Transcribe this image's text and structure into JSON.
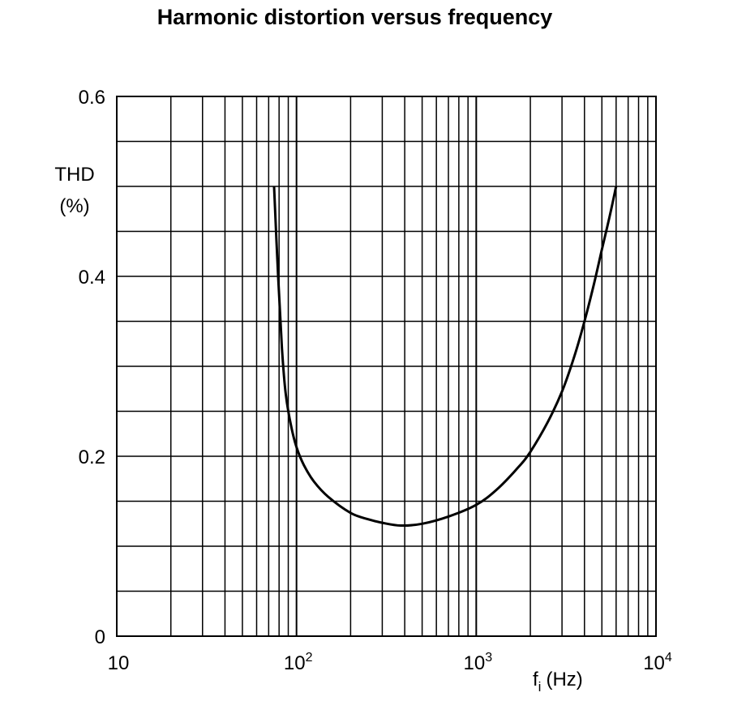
{
  "title": "Harmonic distortion versus frequency",
  "chart_data": {
    "type": "line",
    "title": "Harmonic distortion versus frequency",
    "xlabel": "f",
    "xlabel_subscript": "i",
    "xlabel_unit": "(Hz)",
    "ylabel_line1": "THD",
    "ylabel_line2": "(%)",
    "x_scale": "log",
    "xlim": [
      10,
      10000
    ],
    "ylim": [
      0,
      0.6
    ],
    "grid": true,
    "x_tick_labels": [
      {
        "value": 10,
        "base": "10",
        "exp": ""
      },
      {
        "value": 100,
        "base": "10",
        "exp": "2"
      },
      {
        "value": 1000,
        "base": "10",
        "exp": "3"
      },
      {
        "value": 10000,
        "base": "10",
        "exp": "4"
      }
    ],
    "y_tick_labels": [
      {
        "value": 0,
        "label": "0"
      },
      {
        "value": 0.2,
        "label": "0.2"
      },
      {
        "value": 0.4,
        "label": "0.4"
      },
      {
        "value": 0.6,
        "label": "0.6"
      }
    ],
    "y_minor_step": 0.05,
    "series": [
      {
        "x": [
          75,
          79,
          83,
          87,
          93,
          100,
          110,
          125,
          150,
          200,
          250,
          300,
          380,
          500,
          700,
          1000,
          1300,
          1700,
          2000,
          2500,
          3000,
          3500,
          4000,
          4500,
          5000,
          5500,
          6000
        ],
        "y": [
          0.5,
          0.4,
          0.32,
          0.27,
          0.235,
          0.21,
          0.19,
          0.172,
          0.155,
          0.137,
          0.13,
          0.126,
          0.123,
          0.125,
          0.133,
          0.146,
          0.163,
          0.187,
          0.205,
          0.238,
          0.272,
          0.31,
          0.35,
          0.39,
          0.43,
          0.465,
          0.5
        ]
      }
    ]
  }
}
